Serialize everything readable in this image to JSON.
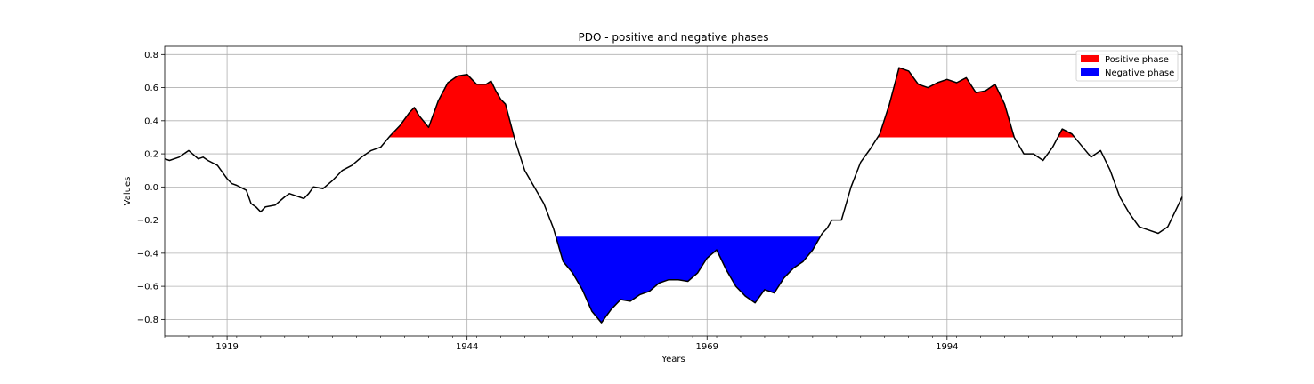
{
  "chart_data": {
    "type": "area",
    "title": "PDO - positive and negative phases",
    "xlabel": "Years",
    "ylabel": "Values",
    "xlim": [
      1912.5,
      2018.5
    ],
    "ylim": [
      -0.9,
      0.85
    ],
    "xticks": [
      1919,
      1944,
      1969,
      1994
    ],
    "xtick_labels": [
      "1919",
      "1944",
      "1969",
      "1994"
    ],
    "yticks": [
      -0.8,
      -0.6,
      -0.4,
      -0.2,
      0.0,
      0.2,
      0.4,
      0.6,
      0.8
    ],
    "ytick_labels": [
      "−0.8",
      "−0.6",
      "−0.4",
      "−0.2",
      "0.0",
      "0.2",
      "0.4",
      "0.6",
      "0.8"
    ],
    "grid": true,
    "legend_position": "top-right",
    "thresholds": {
      "positive": 0.3,
      "negative": -0.3
    },
    "colors": {
      "line": "#000000",
      "positive": "#ff0000",
      "negative": "#0000ff",
      "grid": "#b0b0b0"
    },
    "series": [
      {
        "name": "",
        "x": [
          1912.5,
          1913.0,
          1914.0,
          1915.0,
          1916.0,
          1916.5,
          1917.0,
          1918.0,
          1919.0,
          1919.5,
          1920.0,
          1921.0,
          1921.5,
          1922.0,
          1922.5,
          1923.0,
          1924.0,
          1925.0,
          1925.5,
          1926.0,
          1926.5,
          1927.0,
          1927.5,
          1928.0,
          1929.0,
          1930.0,
          1931.0,
          1932.0,
          1933.0,
          1934.0,
          1935.0,
          1936.0,
          1937.0,
          1938.0,
          1938.5,
          1939.0,
          1940.0,
          1941.0,
          1942.0,
          1943.0,
          1944.0,
          1945.0,
          1946.0,
          1946.5,
          1947.0,
          1947.5,
          1948.0,
          1949.0,
          1950.0,
          1951.0,
          1952.0,
          1953.0,
          1954.0,
          1955.0,
          1956.0,
          1957.0,
          1958.0,
          1959.0,
          1960.0,
          1961.0,
          1962.0,
          1963.0,
          1964.0,
          1965.0,
          1966.0,
          1967.0,
          1968.0,
          1969.0,
          1970.0,
          1971.0,
          1972.0,
          1973.0,
          1974.0,
          1975.0,
          1976.0,
          1977.0,
          1978.0,
          1979.0,
          1980.0,
          1981.0,
          1981.5,
          1982.0,
          1983.0,
          1984.0,
          1985.0,
          1986.0,
          1987.0,
          1988.0,
          1989.0,
          1990.0,
          1991.0,
          1992.0,
          1993.0,
          1994.0,
          1995.0,
          1996.0,
          1997.0,
          1998.0,
          1999.0,
          2000.0,
          2001.0,
          2002.0,
          2003.0,
          2004.0,
          2005.0,
          2006.0,
          2007.0,
          2008.0,
          2009.0,
          2010.0,
          2011.0,
          2012.0,
          2013.0,
          2014.0,
          2015.0,
          2016.0,
          2017.0,
          2018.0,
          2018.5
        ],
        "values": [
          0.17,
          0.16,
          0.18,
          0.22,
          0.17,
          0.18,
          0.16,
          0.13,
          0.05,
          0.02,
          0.01,
          -0.02,
          -0.1,
          -0.12,
          -0.15,
          -0.12,
          -0.11,
          -0.06,
          -0.04,
          -0.05,
          -0.06,
          -0.07,
          -0.04,
          0.0,
          -0.01,
          0.04,
          0.1,
          0.13,
          0.18,
          0.22,
          0.24,
          0.31,
          0.37,
          0.45,
          0.48,
          0.43,
          0.36,
          0.52,
          0.63,
          0.67,
          0.68,
          0.62,
          0.62,
          0.64,
          0.58,
          0.53,
          0.5,
          0.28,
          0.1,
          0.0,
          -0.1,
          -0.25,
          -0.45,
          -0.52,
          -0.62,
          -0.75,
          -0.82,
          -0.74,
          -0.68,
          -0.69,
          -0.65,
          -0.63,
          -0.58,
          -0.56,
          -0.56,
          -0.57,
          -0.52,
          -0.43,
          -0.38,
          -0.5,
          -0.6,
          -0.66,
          -0.7,
          -0.62,
          -0.64,
          -0.55,
          -0.49,
          -0.45,
          -0.38,
          -0.28,
          -0.25,
          -0.2,
          -0.2,
          0.0,
          0.15,
          0.23,
          0.32,
          0.5,
          0.72,
          0.7,
          0.62,
          0.6,
          0.63,
          0.65,
          0.63,
          0.66,
          0.57,
          0.58,
          0.62,
          0.5,
          0.3,
          0.2,
          0.2,
          0.16,
          0.24,
          0.35,
          0.32,
          0.25,
          0.18,
          0.22,
          0.1,
          -0.06,
          -0.16,
          -0.24,
          -0.26,
          -0.28,
          -0.24,
          -0.12,
          -0.06
        ]
      }
    ],
    "legend": [
      {
        "label": "Positive phase",
        "color": "#ff0000"
      },
      {
        "label": "Negative phase",
        "color": "#0000ff"
      }
    ]
  }
}
